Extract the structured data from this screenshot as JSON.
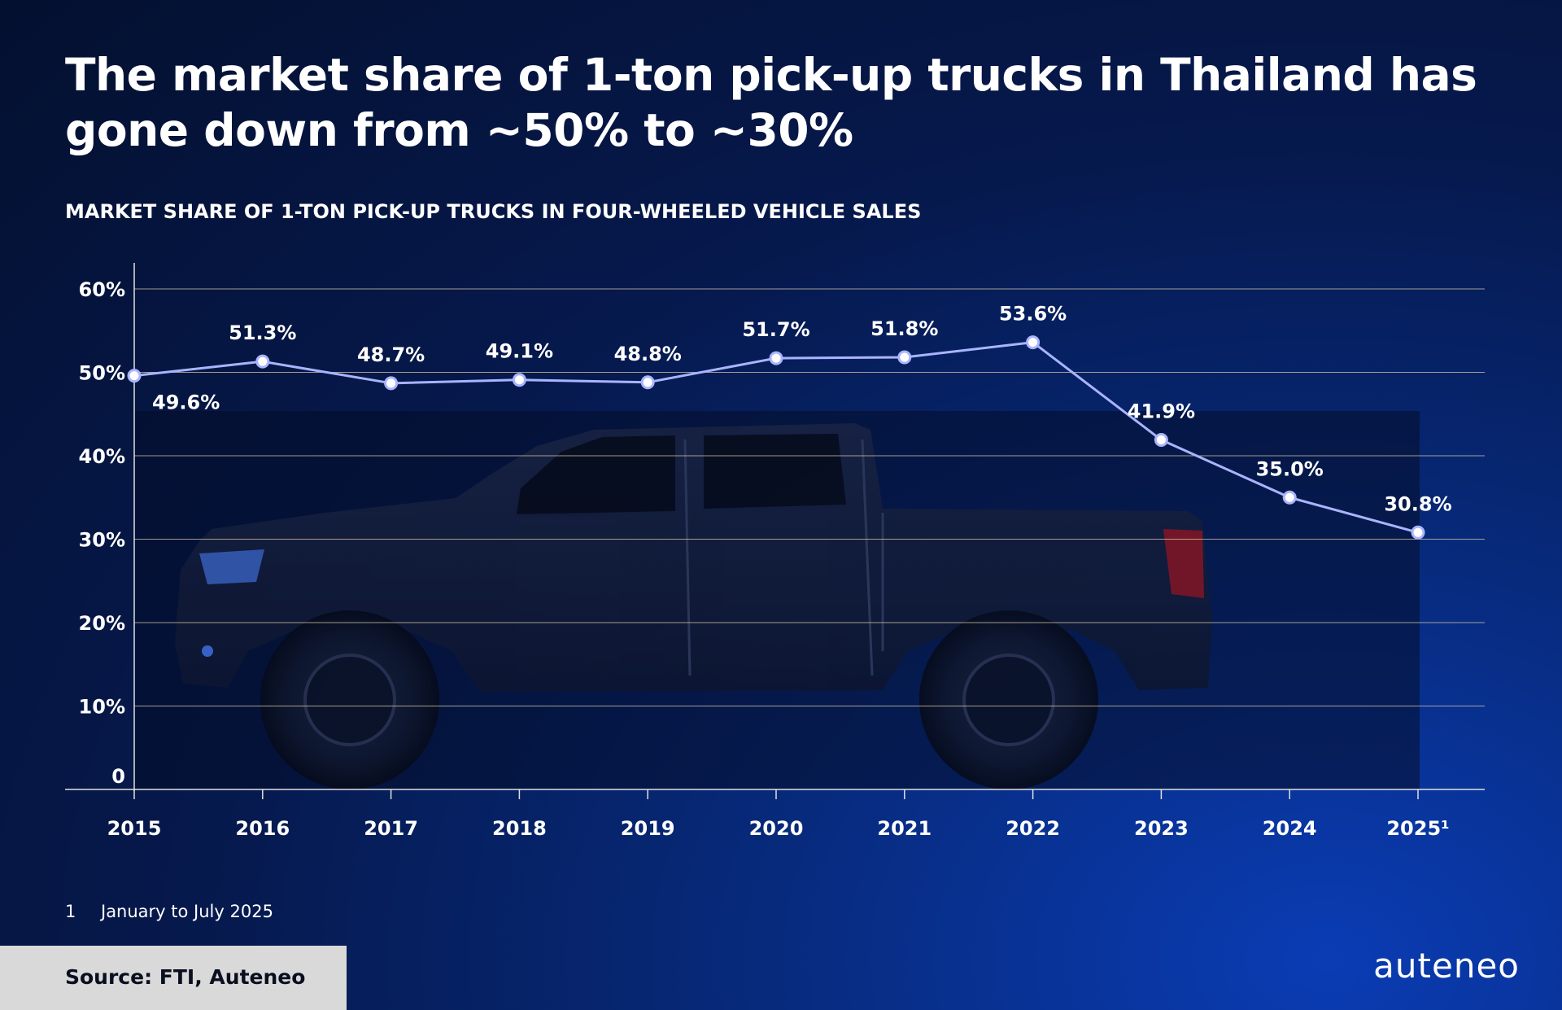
{
  "header": {
    "title": "The market share of 1-ton pick-up trucks in Thailand has gone down from ~50% to ~30%",
    "subtitle": "MARKET SHARE OF 1-TON PICK-UP TRUCKS IN FOUR-WHEELED VEHICLE SALES"
  },
  "colors": {
    "line": "#a9b4ff",
    "grid": "#d8c9a8",
    "background": "#06194d",
    "marker_fill": "#ffffff"
  },
  "chart_data": {
    "type": "line",
    "title": "MARKET SHARE OF 1-TON PICK-UP TRUCKS IN FOUR-WHEELED VEHICLE SALES",
    "xlabel": "",
    "ylabel": "",
    "categories": [
      "2015",
      "2016",
      "2017",
      "2018",
      "2019",
      "2020",
      "2021",
      "2022",
      "2023",
      "2024",
      "2025¹"
    ],
    "series": [
      {
        "name": "Market share",
        "values": [
          49.6,
          51.3,
          48.7,
          49.1,
          48.8,
          51.7,
          51.8,
          53.6,
          41.9,
          35.0,
          30.8
        ],
        "labels": [
          "49.6%",
          "51.3%",
          "48.7%",
          "49.1%",
          "48.8%",
          "51.7%",
          "51.8%",
          "53.6%",
          "41.9%",
          "35.0%",
          "30.8%"
        ]
      }
    ],
    "ylim": [
      0,
      60
    ],
    "yticks": [
      0,
      10,
      20,
      30,
      40,
      50,
      60
    ],
    "ytick_labels": [
      "0",
      "10%",
      "20%",
      "30%",
      "40%",
      "50%",
      "60%"
    ],
    "grid": true
  },
  "footnote": {
    "number": "1",
    "text": "January to July 2025"
  },
  "source": "Source: FTI, Auteneo",
  "logo": "auteneo"
}
